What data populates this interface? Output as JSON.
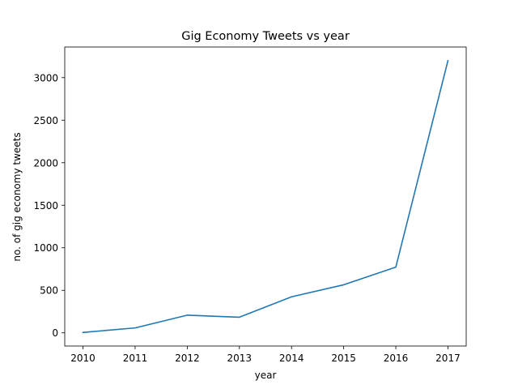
{
  "chart_data": {
    "type": "line",
    "title": "Gig Economy Tweets vs year",
    "xlabel": "year",
    "ylabel": "no. of gig economy tweets",
    "x": [
      2010,
      2011,
      2012,
      2013,
      2014,
      2015,
      2016,
      2017
    ],
    "series": [
      {
        "values": [
          5,
          58,
          208,
          184,
          424,
          565,
          773,
          3200
        ]
      }
    ],
    "xlim": [
      2009.65,
      2017.35
    ],
    "ylim": [
      -155,
      3360
    ],
    "xticks": [
      "2010",
      "2011",
      "2012",
      "2013",
      "2014",
      "2015",
      "2016",
      "2017"
    ],
    "yticks": [
      0,
      500,
      1000,
      1500,
      2000,
      2500,
      3000
    ],
    "grid": false,
    "line_color": "#1f77b4"
  }
}
